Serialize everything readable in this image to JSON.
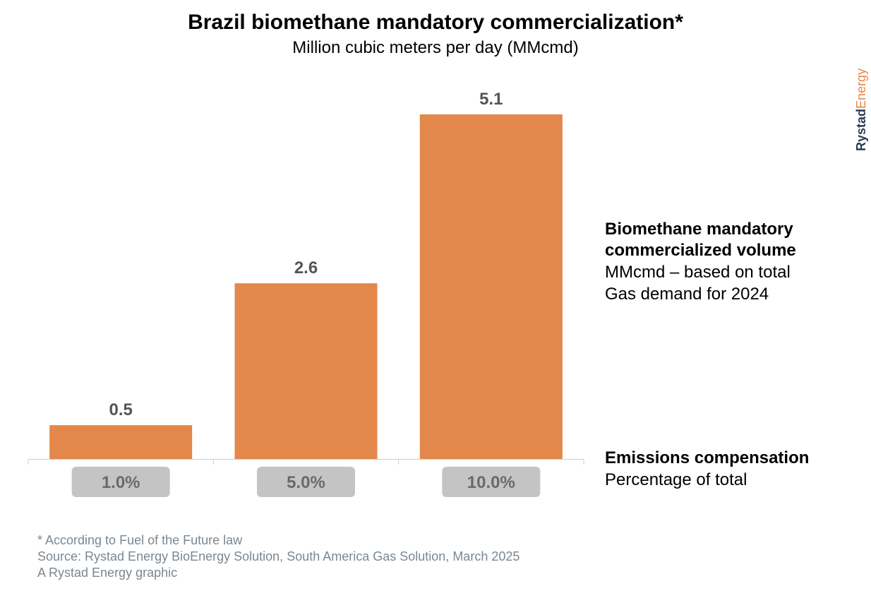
{
  "title": "Brazil biomethane mandatory commercialization*",
  "subtitle": "Million cubic meters per day (MMcmd)",
  "legend": {
    "volume_heading_line1": "Biomethane mandatory",
    "volume_heading_line2": "commercialized volume",
    "volume_desc_line1": "MMcmd – based on total",
    "volume_desc_line2": "Gas demand for 2024",
    "emissions_heading": "Emissions compensation",
    "emissions_desc": "Percentage of total"
  },
  "footnotes": {
    "note": "* According to Fuel of the Future law",
    "source": "Source: Rystad Energy BioEnergy Solution, South America Gas Solution, March 2025",
    "credit": "A Rystad Energy graphic"
  },
  "brand": {
    "part1": "Rystad",
    "part2": "Energy",
    "color1": "#2c3a55",
    "color2": "#e3874a"
  },
  "colors": {
    "bar": "#e3874a",
    "value_label": "#555555",
    "badge_bg": "#c4c4c4",
    "badge_text": "#6a6a6a",
    "axis": "#cccccc"
  },
  "chart_data": {
    "type": "bar",
    "categories": [
      "1.0%",
      "5.0%",
      "10.0%"
    ],
    "values": [
      0.5,
      2.6,
      5.1
    ],
    "value_labels": [
      "0.5",
      "2.6",
      "5.1"
    ],
    "title": "Brazil biomethane mandatory commercialization*",
    "subtitle": "Million cubic meters per day (MMcmd)",
    "xlabel": "",
    "ylabel": "",
    "ylim": [
      0,
      5.1
    ],
    "grid": false,
    "legend": "none"
  }
}
